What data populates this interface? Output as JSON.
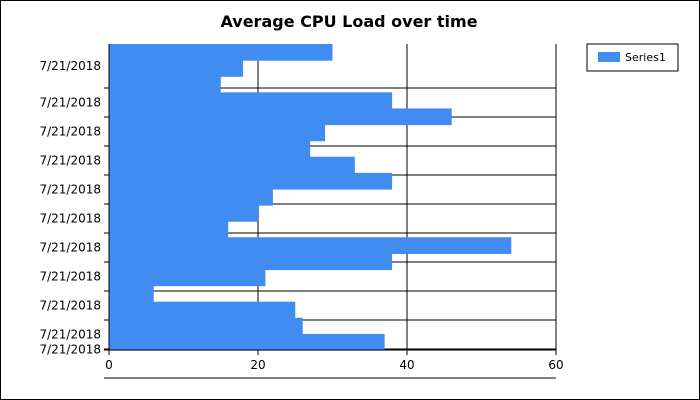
{
  "chart_data": {
    "type": "bar",
    "orientation": "horizontal",
    "title": "Average CPU Load over time",
    "xlabel": "",
    "ylabel": "",
    "xlim": [
      0,
      60
    ],
    "x_ticks": [
      0,
      20,
      40,
      60
    ],
    "y_tick_labels": [
      "7/21/2018",
      "7/21/2018",
      "7/21/2018",
      "7/21/2018",
      "7/21/2018",
      "7/21/2018",
      "7/21/2018",
      "7/21/2018",
      "7/21/2018",
      "7/21/2018",
      "7/21/2018"
    ],
    "grid": true,
    "legend_position": "top-right",
    "series": [
      {
        "name": "Series1",
        "color": "#418cf0",
        "values": [
          30,
          18,
          15,
          38,
          46,
          29,
          27,
          33,
          38,
          22,
          20,
          16,
          54,
          38,
          21,
          6,
          25,
          26,
          37
        ]
      }
    ]
  }
}
